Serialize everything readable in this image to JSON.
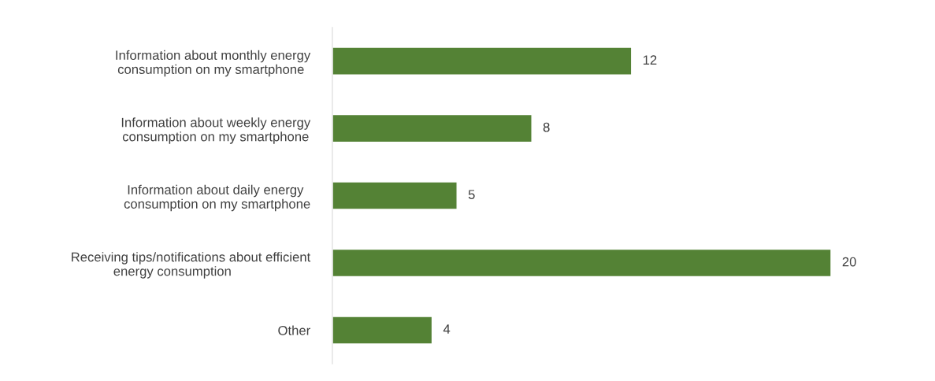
{
  "chart_data": {
    "type": "bar",
    "orientation": "horizontal",
    "categories": [
      "Information about monthly energy\nconsumption on my smartphone ",
      "Information about weekly energy\nconsumption on my smartphone",
      "Information about daily energy \nconsumption on my smartphone",
      "Receiving tips/notifications about efficient\nenergy consumption          ",
      "Other"
    ],
    "values": [
      12,
      8,
      5,
      20,
      4
    ],
    "color": "#548235",
    "data_labels": true,
    "tick_labels": "y",
    "grid": false,
    "legend": false
  }
}
